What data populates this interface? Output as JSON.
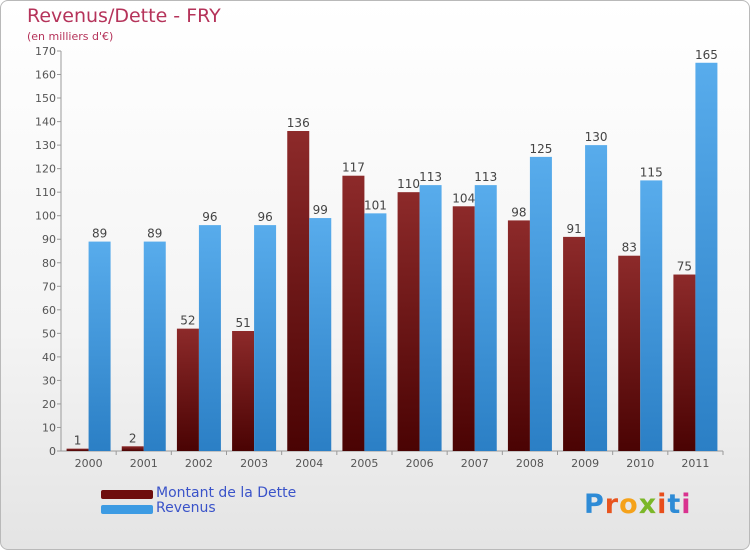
{
  "title": "Revenus/Dette - FRY",
  "subtitle": "(en milliers d'€)",
  "logo": "Proxiti",
  "colors": {
    "dette": "#7b1a1a",
    "revenus": "#3d9be3"
  },
  "legend": {
    "items": [
      "Montant de la Dette",
      "Revenus"
    ]
  },
  "chart_data": {
    "type": "bar",
    "title": "Revenus/Dette - FRY",
    "subtitle": "(en milliers d'€)",
    "xlabel": "",
    "ylabel": "",
    "ylim": [
      0,
      170
    ],
    "ytick_step": 10,
    "grid": false,
    "legend_position": "bottom-left",
    "categories": [
      "2000",
      "2001",
      "2002",
      "2003",
      "2004",
      "2005",
      "2006",
      "2007",
      "2008",
      "2009",
      "2010",
      "2011"
    ],
    "series": [
      {
        "name": "Montant de la Dette",
        "values": [
          1,
          2,
          52,
          51,
          136,
          117,
          110,
          104,
          98,
          91,
          83,
          75
        ]
      },
      {
        "name": "Revenus",
        "values": [
          89,
          89,
          96,
          96,
          99,
          101,
          113,
          113,
          125,
          130,
          115,
          165
        ]
      }
    ]
  }
}
